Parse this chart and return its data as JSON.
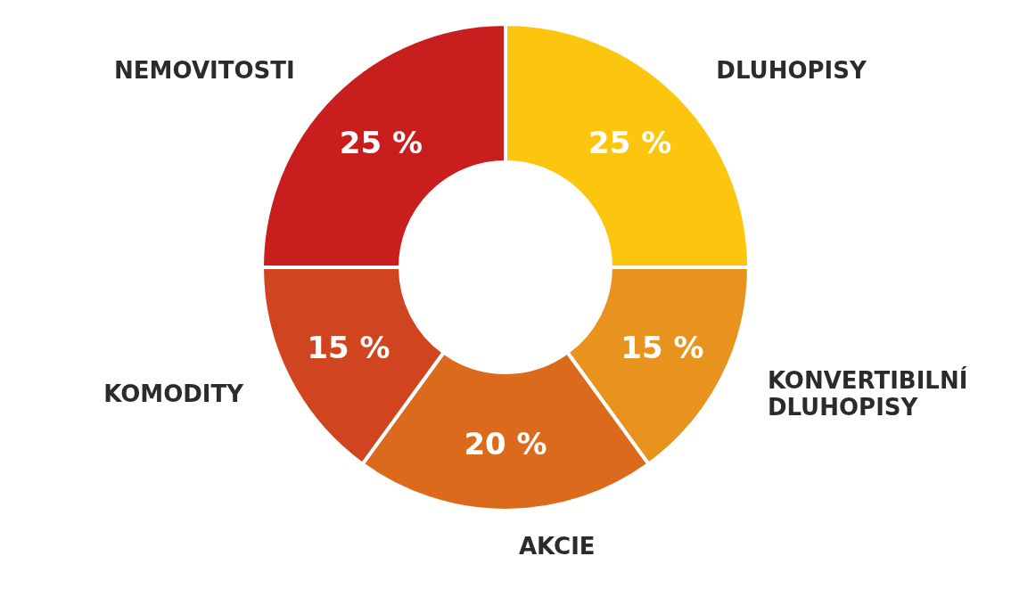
{
  "chart_data": {
    "type": "donut",
    "categories": [
      "DLUHOPISY",
      "KONVERTIBILNÍ DLUHOPISY",
      "AKCIE",
      "KOMODITY",
      "NEMOVITOSTI"
    ],
    "values": [
      25,
      15,
      20,
      15,
      25
    ],
    "value_labels": [
      "25 %",
      "15 %",
      "20 %",
      "15 %",
      "25 %"
    ],
    "colors": [
      "#fcc60e",
      "#e8931e",
      "#dc6a1c",
      "#d04420",
      "#c91e1e"
    ],
    "legend": false
  }
}
